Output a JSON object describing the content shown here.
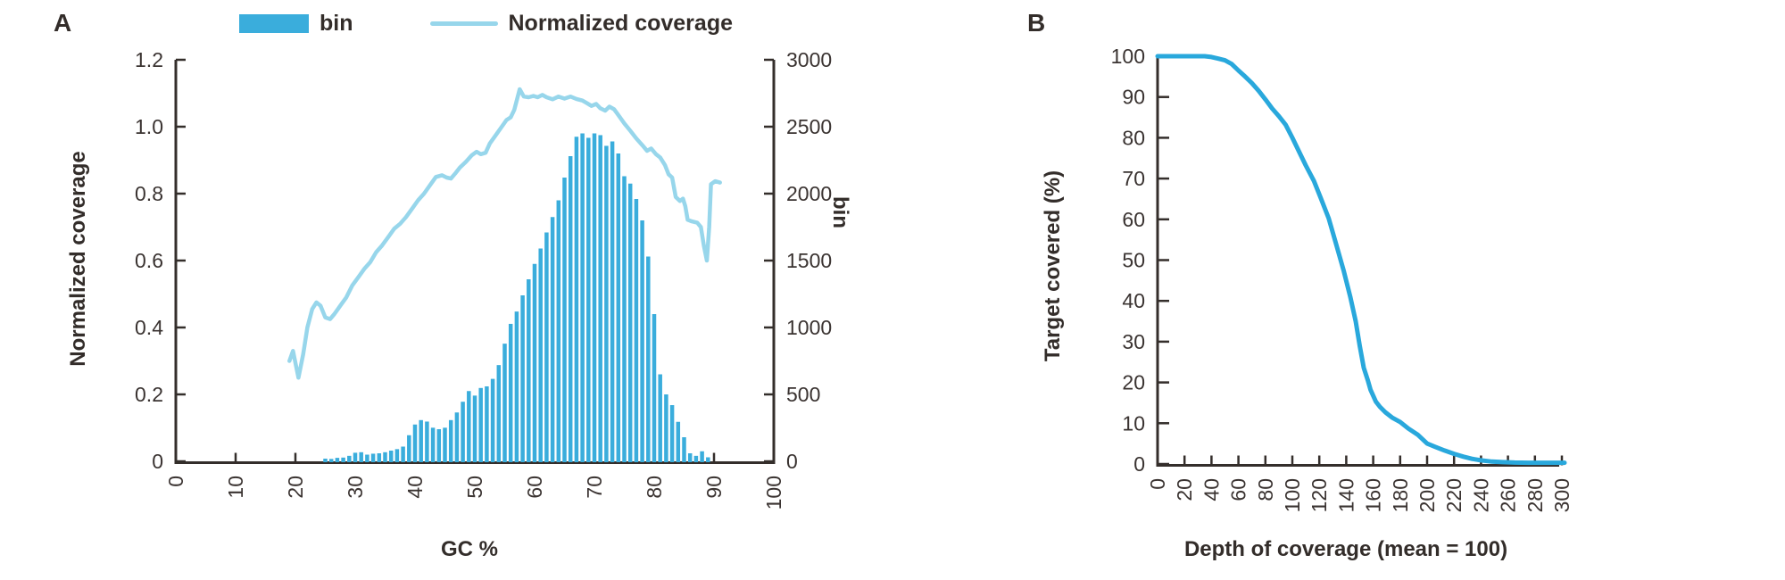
{
  "figure": {
    "panel_a_label": "A",
    "panel_b_label": "B",
    "legend": {
      "bin_label": "bin",
      "line_label": "Normalized coverage"
    }
  },
  "colors": {
    "bar": "#3aaddc",
    "line_a": "#97d6eb",
    "line_b": "#29a8dc",
    "axis": "#342e2b",
    "text": "#332d2a"
  },
  "chart_data": [
    {
      "type": "bar",
      "panel": "A",
      "title": "",
      "xlabel": "GC %",
      "ylabel_left": "Normalized coverage",
      "ylabel_right": "bin",
      "xlim": [
        0,
        100
      ],
      "x_ticks": [
        0,
        10,
        20,
        30,
        40,
        50,
        60,
        70,
        80,
        90,
        100
      ],
      "ylim_left": [
        0,
        1.2
      ],
      "y_ticks_left": [
        0,
        0.2,
        0.4,
        0.6,
        0.8,
        1.0,
        1.2
      ],
      "ylim_right": [
        0,
        3000
      ],
      "y_ticks_right": [
        0,
        500,
        1000,
        1500,
        2000,
        2500,
        3000
      ],
      "grid": false,
      "legend_position": "top",
      "bars": {
        "name": "bin",
        "axis": "right",
        "gc_start": 25,
        "gc_step": 1,
        "values": [
          20,
          18,
          26,
          28,
          41,
          64,
          68,
          50,
          57,
          60,
          68,
          80,
          91,
          110,
          195,
          275,
          308,
          297,
          251,
          240,
          251,
          308,
          365,
          445,
          525,
          491,
          548,
          560,
          616,
          719,
          879,
          1027,
          1119,
          1240,
          1360,
          1475,
          1590,
          1710,
          1825,
          1950,
          2120,
          2280,
          2425,
          2450,
          2417,
          2450,
          2437,
          2357,
          2390,
          2300,
          2130,
          2075,
          1960,
          1800,
          1530,
          1100,
          650,
          500,
          420,
          295,
          180,
          60,
          41,
          75,
          30
        ]
      },
      "line": {
        "name": "Normalized coverage",
        "axis": "left",
        "points": [
          [
            19,
            0.3
          ],
          [
            19.6,
            0.33
          ],
          [
            20.5,
            0.25
          ],
          [
            21.3,
            0.32
          ],
          [
            22,
            0.4
          ],
          [
            22.8,
            0.455
          ],
          [
            23.5,
            0.475
          ],
          [
            24.2,
            0.465
          ],
          [
            25,
            0.43
          ],
          [
            25.8,
            0.425
          ],
          [
            26.5,
            0.44
          ],
          [
            27.5,
            0.465
          ],
          [
            28.5,
            0.49
          ],
          [
            29.5,
            0.525
          ],
          [
            30.5,
            0.55
          ],
          [
            31.5,
            0.575
          ],
          [
            32.5,
            0.595
          ],
          [
            33.5,
            0.625
          ],
          [
            34.5,
            0.645
          ],
          [
            35.5,
            0.67
          ],
          [
            36.5,
            0.695
          ],
          [
            37.5,
            0.71
          ],
          [
            38.5,
            0.73
          ],
          [
            39.5,
            0.755
          ],
          [
            40.5,
            0.78
          ],
          [
            41.5,
            0.8
          ],
          [
            42.5,
            0.825
          ],
          [
            43.5,
            0.85
          ],
          [
            44.5,
            0.855
          ],
          [
            45.3,
            0.848
          ],
          [
            46,
            0.845
          ],
          [
            46.8,
            0.862
          ],
          [
            47.5,
            0.878
          ],
          [
            48.5,
            0.895
          ],
          [
            49.5,
            0.915
          ],
          [
            50.3,
            0.925
          ],
          [
            51,
            0.918
          ],
          [
            51.8,
            0.922
          ],
          [
            52.5,
            0.95
          ],
          [
            53.5,
            0.975
          ],
          [
            54.5,
            1.0
          ],
          [
            55.3,
            1.02
          ],
          [
            56,
            1.028
          ],
          [
            56.6,
            1.05
          ],
          [
            57.5,
            1.112
          ],
          [
            58.2,
            1.09
          ],
          [
            59,
            1.088
          ],
          [
            59.8,
            1.092
          ],
          [
            60.5,
            1.088
          ],
          [
            61.3,
            1.095
          ],
          [
            62,
            1.088
          ],
          [
            63,
            1.082
          ],
          [
            64,
            1.09
          ],
          [
            65,
            1.084
          ],
          [
            66,
            1.09
          ],
          [
            67,
            1.083
          ],
          [
            68,
            1.078
          ],
          [
            68.8,
            1.07
          ],
          [
            69.5,
            1.062
          ],
          [
            70.3,
            1.068
          ],
          [
            71,
            1.055
          ],
          [
            71.8,
            1.048
          ],
          [
            72.5,
            1.06
          ],
          [
            73.3,
            1.052
          ],
          [
            74,
            1.035
          ],
          [
            75,
            1.01
          ],
          [
            76,
            0.988
          ],
          [
            77,
            0.965
          ],
          [
            78,
            0.945
          ],
          [
            78.8,
            0.928
          ],
          [
            79.5,
            0.935
          ],
          [
            80.3,
            0.918
          ],
          [
            81,
            0.908
          ],
          [
            81.8,
            0.885
          ],
          [
            82.4,
            0.858
          ],
          [
            83,
            0.848
          ],
          [
            83.6,
            0.79
          ],
          [
            84.3,
            0.778
          ],
          [
            84.8,
            0.785
          ],
          [
            85.2,
            0.763
          ],
          [
            85.6,
            0.722
          ],
          [
            86.3,
            0.717
          ],
          [
            87.2,
            0.713
          ],
          [
            87.8,
            0.7
          ],
          [
            88.3,
            0.645
          ],
          [
            88.8,
            0.6
          ],
          [
            89.2,
            0.7
          ],
          [
            89.5,
            0.828
          ],
          [
            90.2,
            0.837
          ],
          [
            91,
            0.833
          ]
        ]
      }
    },
    {
      "type": "line",
      "panel": "B",
      "title": "",
      "xlabel": "Depth of coverage (mean = 100)",
      "ylabel": "Target covered (%)",
      "xlim": [
        0,
        300
      ],
      "x_ticks": [
        0,
        20,
        40,
        60,
        80,
        100,
        120,
        140,
        160,
        180,
        200,
        220,
        240,
        260,
        280,
        300
      ],
      "ylim": [
        0,
        100
      ],
      "y_ticks": [
        0,
        10,
        20,
        30,
        40,
        50,
        60,
        70,
        80,
        90,
        100
      ],
      "grid": false,
      "series": [
        {
          "name": "Target covered (%)",
          "points": [
            [
              0,
              100
            ],
            [
              20,
              100
            ],
            [
              35,
              100
            ],
            [
              40,
              99.8
            ],
            [
              45,
              99.4
            ],
            [
              50,
              99
            ],
            [
              55,
              98.1
            ],
            [
              60,
              96.5
            ],
            [
              65,
              95
            ],
            [
              70,
              93.4
            ],
            [
              75,
              91.5
            ],
            [
              80,
              89.4
            ],
            [
              85,
              87.2
            ],
            [
              90,
              85.3
            ],
            [
              95,
              83.2
            ],
            [
              100,
              80
            ],
            [
              105,
              76.6
            ],
            [
              110,
              73.2
            ],
            [
              116,
              69.4
            ],
            [
              121,
              65.3
            ],
            [
              127,
              60.2
            ],
            [
              132,
              54.5
            ],
            [
              138,
              47.5
            ],
            [
              143,
              41
            ],
            [
              147,
              35
            ],
            [
              150,
              29
            ],
            [
              153,
              23.6
            ],
            [
              156,
              20.5
            ],
            [
              158,
              18.2
            ],
            [
              162,
              15.3
            ],
            [
              165,
              14
            ],
            [
              169,
              12.7
            ],
            [
              174,
              11.4
            ],
            [
              180,
              10.3
            ],
            [
              186,
              8.7
            ],
            [
              193,
              7.2
            ],
            [
              200,
              5
            ],
            [
              206,
              4.2
            ],
            [
              213,
              3.3
            ],
            [
              220,
              2.5
            ],
            [
              227,
              1.8
            ],
            [
              233,
              1.3
            ],
            [
              240,
              0.9
            ],
            [
              248,
              0.6
            ],
            [
              256,
              0.45
            ],
            [
              265,
              0.35
            ],
            [
              275,
              0.3
            ],
            [
              285,
              0.3
            ],
            [
              297,
              0.3
            ]
          ]
        }
      ]
    }
  ]
}
